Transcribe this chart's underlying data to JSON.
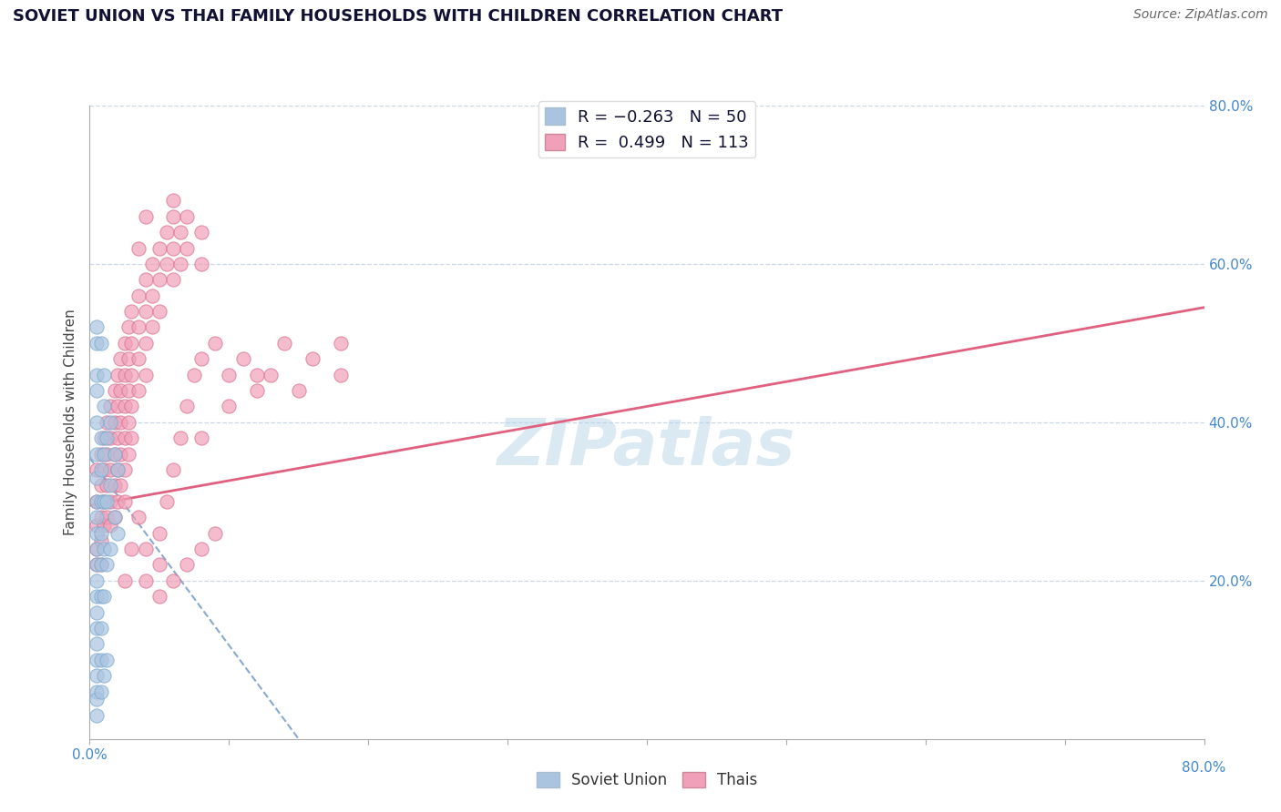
{
  "title": "SOVIET UNION VS THAI FAMILY HOUSEHOLDS WITH CHILDREN CORRELATION CHART",
  "source": "Source: ZipAtlas.com",
  "ylabel": "Family Households with Children",
  "soviet_color": "#aac4e0",
  "soviet_edge_color": "#7aaace",
  "soviet_line_color": "#88aad0",
  "thai_color": "#f0a0b8",
  "thai_edge_color": "#d87090",
  "thai_line_color": "#e06080",
  "watermark_color": "#b8d4e8",
  "xmin": 0.0,
  "xmax": 0.8,
  "ymin": 0.0,
  "ymax": 0.8,
  "yticks": [
    0.2,
    0.4,
    0.6,
    0.8
  ],
  "ytick_labels": [
    "20.0%",
    "40.0%",
    "60.0%",
    "80.0%"
  ],
  "soviet_R": -0.263,
  "soviet_N": 50,
  "thai_R": 0.499,
  "thai_N": 113,
  "soviet_line_x0": 0.0,
  "soviet_line_y0": 0.355,
  "soviet_line_x1": 0.15,
  "soviet_line_y1": 0.0,
  "thai_line_x0": 0.0,
  "thai_line_y0": 0.295,
  "thai_line_x1": 0.8,
  "thai_line_y1": 0.545,
  "soviet_points": [
    [
      0.005,
      0.44
    ],
    [
      0.005,
      0.4
    ],
    [
      0.005,
      0.36
    ],
    [
      0.005,
      0.33
    ],
    [
      0.005,
      0.3
    ],
    [
      0.005,
      0.28
    ],
    [
      0.005,
      0.26
    ],
    [
      0.005,
      0.24
    ],
    [
      0.005,
      0.22
    ],
    [
      0.005,
      0.2
    ],
    [
      0.005,
      0.18
    ],
    [
      0.005,
      0.16
    ],
    [
      0.005,
      0.14
    ],
    [
      0.005,
      0.12
    ],
    [
      0.005,
      0.1
    ],
    [
      0.005,
      0.08
    ],
    [
      0.005,
      0.06
    ],
    [
      0.008,
      0.38
    ],
    [
      0.008,
      0.34
    ],
    [
      0.008,
      0.3
    ],
    [
      0.008,
      0.26
    ],
    [
      0.008,
      0.22
    ],
    [
      0.008,
      0.18
    ],
    [
      0.008,
      0.14
    ],
    [
      0.008,
      0.1
    ],
    [
      0.01,
      0.42
    ],
    [
      0.01,
      0.36
    ],
    [
      0.01,
      0.3
    ],
    [
      0.01,
      0.24
    ],
    [
      0.01,
      0.18
    ],
    [
      0.012,
      0.38
    ],
    [
      0.012,
      0.3
    ],
    [
      0.012,
      0.22
    ],
    [
      0.015,
      0.4
    ],
    [
      0.015,
      0.32
    ],
    [
      0.015,
      0.24
    ],
    [
      0.018,
      0.36
    ],
    [
      0.018,
      0.28
    ],
    [
      0.02,
      0.34
    ],
    [
      0.02,
      0.26
    ],
    [
      0.005,
      0.5
    ],
    [
      0.005,
      0.46
    ],
    [
      0.005,
      0.52
    ],
    [
      0.005,
      0.05
    ],
    [
      0.005,
      0.03
    ],
    [
      0.008,
      0.06
    ],
    [
      0.01,
      0.08
    ],
    [
      0.012,
      0.1
    ],
    [
      0.008,
      0.5
    ],
    [
      0.01,
      0.46
    ]
  ],
  "thai_points": [
    [
      0.005,
      0.34
    ],
    [
      0.005,
      0.3
    ],
    [
      0.005,
      0.27
    ],
    [
      0.005,
      0.24
    ],
    [
      0.005,
      0.22
    ],
    [
      0.008,
      0.36
    ],
    [
      0.008,
      0.32
    ],
    [
      0.008,
      0.28
    ],
    [
      0.008,
      0.25
    ],
    [
      0.008,
      0.22
    ],
    [
      0.01,
      0.38
    ],
    [
      0.01,
      0.34
    ],
    [
      0.01,
      0.3
    ],
    [
      0.01,
      0.27
    ],
    [
      0.012,
      0.4
    ],
    [
      0.012,
      0.36
    ],
    [
      0.012,
      0.32
    ],
    [
      0.012,
      0.28
    ],
    [
      0.015,
      0.42
    ],
    [
      0.015,
      0.38
    ],
    [
      0.015,
      0.34
    ],
    [
      0.015,
      0.3
    ],
    [
      0.015,
      0.27
    ],
    [
      0.018,
      0.44
    ],
    [
      0.018,
      0.4
    ],
    [
      0.018,
      0.36
    ],
    [
      0.018,
      0.32
    ],
    [
      0.018,
      0.28
    ],
    [
      0.02,
      0.46
    ],
    [
      0.02,
      0.42
    ],
    [
      0.02,
      0.38
    ],
    [
      0.02,
      0.34
    ],
    [
      0.02,
      0.3
    ],
    [
      0.022,
      0.48
    ],
    [
      0.022,
      0.44
    ],
    [
      0.022,
      0.4
    ],
    [
      0.022,
      0.36
    ],
    [
      0.022,
      0.32
    ],
    [
      0.025,
      0.5
    ],
    [
      0.025,
      0.46
    ],
    [
      0.025,
      0.42
    ],
    [
      0.025,
      0.38
    ],
    [
      0.025,
      0.34
    ],
    [
      0.025,
      0.3
    ],
    [
      0.028,
      0.52
    ],
    [
      0.028,
      0.48
    ],
    [
      0.028,
      0.44
    ],
    [
      0.028,
      0.4
    ],
    [
      0.028,
      0.36
    ],
    [
      0.03,
      0.54
    ],
    [
      0.03,
      0.5
    ],
    [
      0.03,
      0.46
    ],
    [
      0.03,
      0.42
    ],
    [
      0.03,
      0.38
    ],
    [
      0.035,
      0.56
    ],
    [
      0.035,
      0.52
    ],
    [
      0.035,
      0.48
    ],
    [
      0.035,
      0.44
    ],
    [
      0.04,
      0.58
    ],
    [
      0.04,
      0.54
    ],
    [
      0.04,
      0.5
    ],
    [
      0.04,
      0.46
    ],
    [
      0.045,
      0.6
    ],
    [
      0.045,
      0.56
    ],
    [
      0.045,
      0.52
    ],
    [
      0.05,
      0.62
    ],
    [
      0.05,
      0.58
    ],
    [
      0.05,
      0.54
    ],
    [
      0.055,
      0.64
    ],
    [
      0.055,
      0.6
    ],
    [
      0.06,
      0.66
    ],
    [
      0.06,
      0.62
    ],
    [
      0.06,
      0.58
    ],
    [
      0.065,
      0.64
    ],
    [
      0.065,
      0.6
    ],
    [
      0.07,
      0.66
    ],
    [
      0.07,
      0.62
    ],
    [
      0.08,
      0.64
    ],
    [
      0.08,
      0.6
    ],
    [
      0.035,
      0.28
    ],
    [
      0.04,
      0.24
    ],
    [
      0.05,
      0.26
    ],
    [
      0.055,
      0.3
    ],
    [
      0.06,
      0.34
    ],
    [
      0.065,
      0.38
    ],
    [
      0.07,
      0.42
    ],
    [
      0.075,
      0.46
    ],
    [
      0.08,
      0.48
    ],
    [
      0.09,
      0.5
    ],
    [
      0.1,
      0.46
    ],
    [
      0.11,
      0.48
    ],
    [
      0.12,
      0.44
    ],
    [
      0.13,
      0.46
    ],
    [
      0.14,
      0.5
    ],
    [
      0.16,
      0.48
    ],
    [
      0.18,
      0.5
    ],
    [
      0.04,
      0.2
    ],
    [
      0.05,
      0.18
    ],
    [
      0.06,
      0.2
    ],
    [
      0.07,
      0.22
    ],
    [
      0.08,
      0.24
    ],
    [
      0.09,
      0.26
    ],
    [
      0.035,
      0.62
    ],
    [
      0.04,
      0.66
    ],
    [
      0.06,
      0.68
    ],
    [
      0.05,
      0.22
    ],
    [
      0.08,
      0.38
    ],
    [
      0.1,
      0.42
    ],
    [
      0.12,
      0.46
    ],
    [
      0.15,
      0.44
    ],
    [
      0.18,
      0.46
    ],
    [
      0.03,
      0.24
    ],
    [
      0.025,
      0.2
    ]
  ]
}
